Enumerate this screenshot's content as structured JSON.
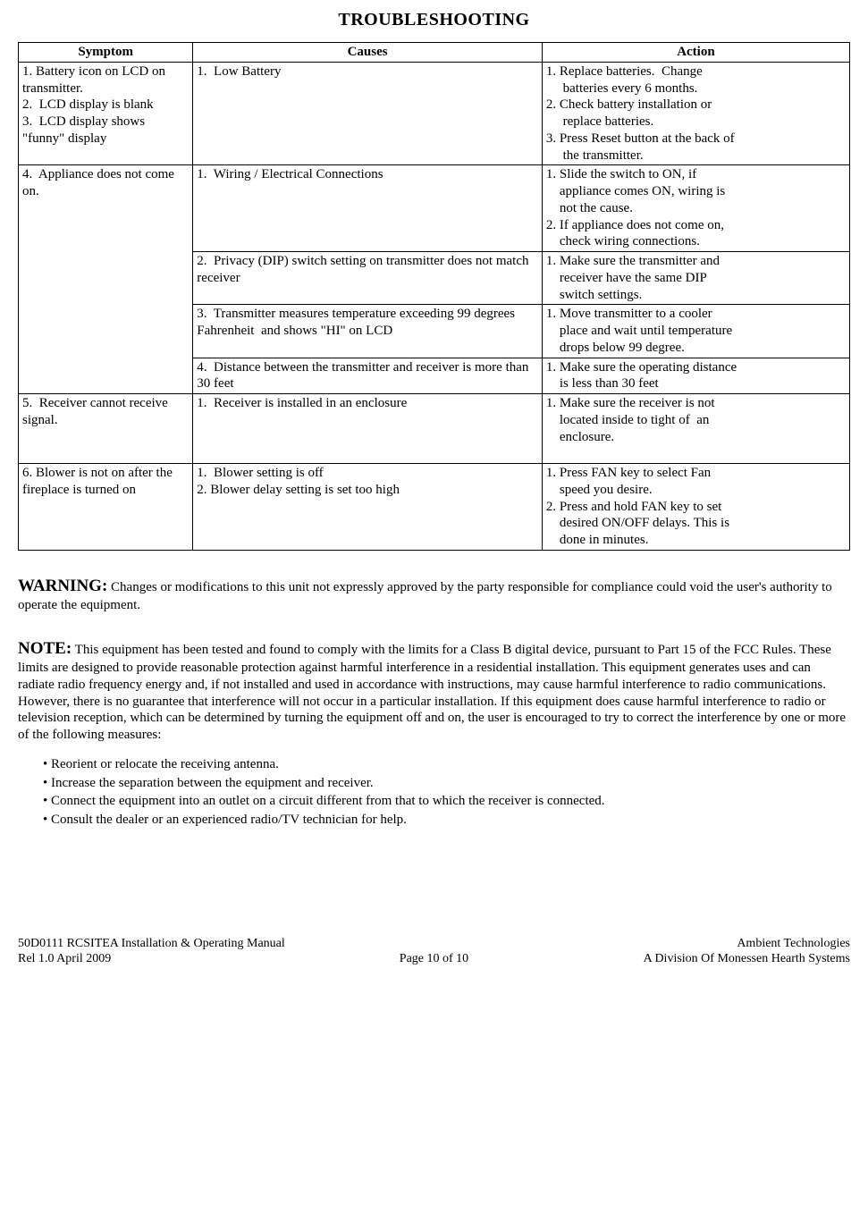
{
  "title": "TROUBLESHOOTING",
  "table": {
    "col_widths": [
      "21%",
      "42%",
      "37%"
    ],
    "headers": [
      "Symptom",
      "Causes",
      "Action"
    ],
    "rows": [
      {
        "symptom": "1. Battery icon on LCD on transmitter.\n2.  LCD display is blank\n3.  LCD display shows \"funny\" display",
        "symptom_rowspan": 1,
        "cells": [
          {
            "cause": "1.  Low Battery",
            "action": "1. Replace batteries.  Change\n     batteries every 6 months.\n2. Check battery installation or\n     replace batteries.\n3. Press Reset button at the back of\n     the transmitter."
          }
        ]
      },
      {
        "symptom": "4.  Appliance does not come on.",
        "symptom_rowspan": 4,
        "cells": [
          {
            "cause": "1.  Wiring / Electrical Connections",
            "action": "1. Slide the switch to ON, if\n    appliance comes ON, wiring is\n    not the cause.\n2. If appliance does not come on,\n    check wiring connections."
          },
          {
            "cause": "2.  Privacy (DIP) switch setting on transmitter does not match receiver",
            "action": "1. Make sure the transmitter and\n    receiver have the same DIP\n    switch settings."
          },
          {
            "cause": "3.  Transmitter measures temperature exceeding 99 degrees Fahrenheit  and shows \"HI\" on LCD",
            "action": "1. Move transmitter to a cooler\n    place and wait until temperature\n    drops below 99 degree."
          },
          {
            "cause": "4.  Distance between the transmitter and receiver is more than 30 feet",
            "action": "1. Make sure the operating distance\n    is less than 30 feet"
          }
        ]
      },
      {
        "symptom": "5.  Receiver cannot receive signal.\n ",
        "symptom_rowspan": 1,
        "cells": [
          {
            "cause": "1.  Receiver is installed in an enclosure",
            "action": "1. Make sure the receiver is not\n    located inside to tight of  an\n    enclosure.\n "
          }
        ]
      },
      {
        "symptom": "6. Blower is not on after the fireplace is turned on",
        "symptom_rowspan": 1,
        "cells": [
          {
            "cause": "1.  Blower setting is off\n2. Blower delay setting is set too high",
            "action": "1. Press FAN key to select Fan\n    speed you desire.\n2. Press and hold FAN key to set\n    desired ON/OFF delays. This is\n    done in minutes."
          }
        ]
      }
    ]
  },
  "warning": {
    "label": "WARNING:",
    "text": " Changes or modifications to this unit not expressly approved by the party responsible for compliance could void the user's authority to operate the equipment."
  },
  "note": {
    "label": "NOTE:",
    "text": " This equipment has been tested and found to comply with the limits for a Class B digital device, pursuant to Part 15 of the FCC Rules. These limits are designed to provide reasonable protection against harmful interference in a residential installation. This equipment generates uses and can radiate radio frequency energy and, if not installed and used in accordance with instructions, may cause harmful interference to radio communications. However, there is no guarantee that interference will not occur in a particular installation. If this equipment does cause harmful interference to radio or television reception, which can be determined by turning the equipment off and on, the user is encouraged to try to correct the interference by one or more of the following measures:",
    "bullets": [
      "• Reorient or relocate the receiving antenna.",
      "• Increase the separation between the equipment and receiver.",
      "• Connect the equipment into an outlet on a circuit different from that to which the receiver is connected.",
      "• Consult the dealer or an experienced radio/TV technician for help."
    ]
  },
  "footer": {
    "left_line1": "50D0111 RCSITEA Installation & Operating Manual",
    "left_line2": "Rel 1.0  April 2009",
    "center": "Page 10 of 10",
    "right_line1": "Ambient Technologies",
    "right_line2": "A Division Of  Monessen Hearth Systems"
  }
}
